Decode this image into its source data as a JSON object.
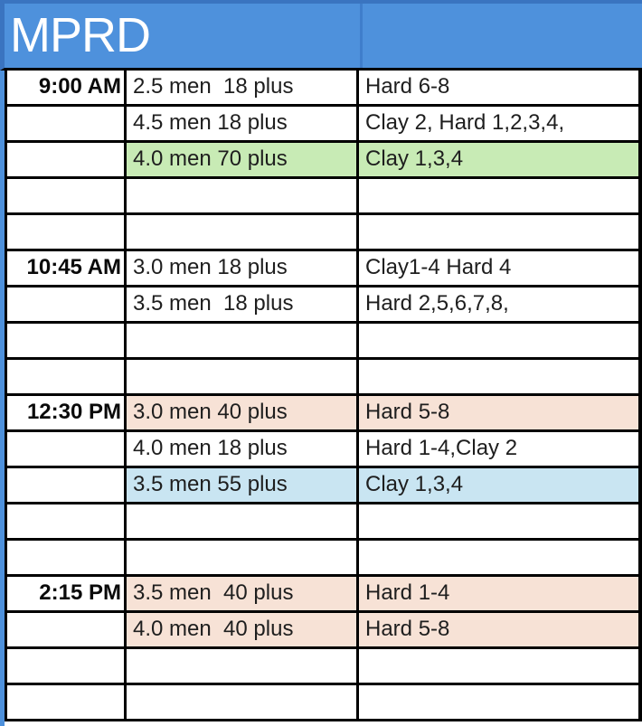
{
  "title": "MPRD",
  "colors": {
    "header_blue": "#4e91dc",
    "header_blue_dark": "#3a74c0",
    "header_divider": "#3f7ecb",
    "green": "#c8ebb5",
    "peach": "#f7e2d6",
    "blue": "#c9e5f2"
  },
  "table": {
    "columns": [
      "time",
      "group",
      "courts"
    ],
    "rows": [
      {
        "time": "9:00 AM",
        "group": "2.5 men  18 plus",
        "courts": "Hard 6-8",
        "bg": "none"
      },
      {
        "time": "",
        "group": "4.5 men 18 plus",
        "courts": "Clay 2, Hard 1,2,3,4,",
        "bg": "none"
      },
      {
        "time": "",
        "group": "4.0 men 70 plus",
        "courts": "Clay 1,3,4",
        "bg": "green"
      },
      {
        "time": "",
        "group": "",
        "courts": "",
        "bg": "none"
      },
      {
        "time": "",
        "group": "",
        "courts": "",
        "bg": "none"
      },
      {
        "time": "10:45 AM",
        "group": "3.0 men 18 plus",
        "courts": "Clay1-4 Hard 4",
        "bg": "none"
      },
      {
        "time": "",
        "group": "3.5 men  18 plus",
        "courts": "Hard 2,5,6,7,8,",
        "bg": "none"
      },
      {
        "time": "",
        "group": "",
        "courts": "",
        "bg": "none"
      },
      {
        "time": "",
        "group": "",
        "courts": "",
        "bg": "none"
      },
      {
        "time": "12:30 PM",
        "group": "3.0 men 40 plus",
        "courts": "Hard 5-8",
        "bg": "peach"
      },
      {
        "time": "",
        "group": "4.0 men 18 plus",
        "courts": "Hard 1-4,Clay 2",
        "bg": "none"
      },
      {
        "time": "",
        "group": "3.5 men 55 plus",
        "courts": "Clay 1,3,4",
        "bg": "blue"
      },
      {
        "time": "",
        "group": "",
        "courts": "",
        "bg": "none"
      },
      {
        "time": "",
        "group": "",
        "courts": "",
        "bg": "none"
      },
      {
        "time": "2:15 PM",
        "group": "3.5 men  40 plus",
        "courts": "Hard 1-4",
        "bg": "peach"
      },
      {
        "time": "",
        "group": "4.0 men  40 plus",
        "courts": "Hard 5-8",
        "bg": "peach"
      },
      {
        "time": "",
        "group": "",
        "courts": "",
        "bg": "none"
      },
      {
        "time": "",
        "group": "",
        "courts": "",
        "bg": "none"
      }
    ]
  }
}
